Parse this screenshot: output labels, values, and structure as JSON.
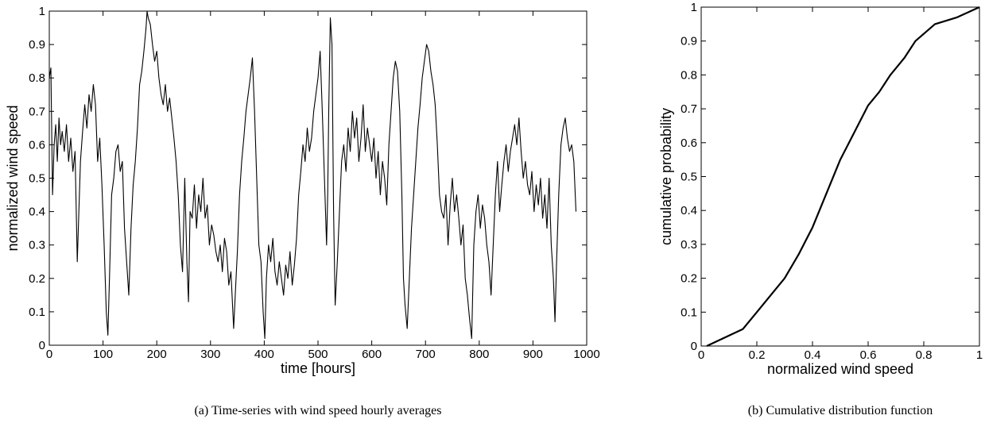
{
  "chart_data": [
    {
      "type": "line",
      "caption": "(a)  Time-series with wind speed hourly averages",
      "xlabel": "time [hours]",
      "ylabel": "normalized wind speed",
      "xlim": [
        0,
        1000
      ],
      "ylim": [
        0,
        1
      ],
      "xticks": [
        "0",
        "100",
        "200",
        "300",
        "400",
        "500",
        "600",
        "700",
        "800",
        "900",
        "1000"
      ],
      "yticks": [
        "0",
        "0.1",
        "0.2",
        "0.3",
        "0.4",
        "0.5",
        "0.6",
        "0.7",
        "0.8",
        "0.9",
        "1"
      ],
      "grid": false,
      "series": [
        {
          "x": [
            0,
            3,
            6,
            9,
            12,
            15,
            18,
            21,
            24,
            28,
            32,
            36,
            40,
            44,
            48,
            52,
            55,
            58,
            62,
            66,
            70,
            74,
            78,
            82,
            86,
            90,
            94,
            98,
            102,
            106,
            109,
            112,
            116,
            120,
            124,
            128,
            132,
            136,
            140,
            144,
            148,
            152,
            156,
            160,
            164,
            168,
            172,
            176,
            180,
            182,
            184,
            188,
            192,
            196,
            200,
            204,
            208,
            212,
            216,
            220,
            224,
            228,
            232,
            236,
            240,
            244,
            248,
            252,
            256,
            259,
            262,
            266,
            270,
            274,
            278,
            282,
            286,
            290,
            294,
            298,
            302,
            306,
            310,
            314,
            318,
            322,
            326,
            330,
            334,
            338,
            343,
            346,
            350,
            354,
            358,
            362,
            366,
            370,
            374,
            378,
            382,
            386,
            390,
            394,
            398,
            401,
            404,
            408,
            412,
            416,
            420,
            424,
            428,
            432,
            436,
            440,
            444,
            448,
            452,
            456,
            460,
            464,
            468,
            472,
            476,
            480,
            484,
            488,
            492,
            496,
            500,
            504,
            508,
            512,
            516,
            518,
            520,
            523,
            526,
            529,
            532,
            536,
            540,
            544,
            548,
            552,
            556,
            560,
            564,
            568,
            572,
            576,
            580,
            584,
            588,
            592,
            596,
            600,
            604,
            608,
            612,
            616,
            620,
            624,
            628,
            632,
            636,
            640,
            644,
            648,
            652,
            656,
            659,
            662,
            666,
            670,
            674,
            678,
            682,
            686,
            690,
            694,
            698,
            702,
            706,
            710,
            714,
            718,
            722,
            726,
            730,
            734,
            738,
            742,
            746,
            750,
            754,
            758,
            762,
            766,
            770,
            774,
            778,
            782,
            786,
            790,
            794,
            798,
            802,
            806,
            810,
            814,
            818,
            822,
            826,
            830,
            834,
            838,
            842,
            846,
            850,
            854,
            858,
            862,
            866,
            870,
            874,
            878,
            882,
            886,
            890,
            894,
            898,
            902,
            906,
            910,
            914,
            918,
            922,
            926,
            930,
            934,
            938,
            941,
            944,
            948,
            952,
            956,
            960,
            964,
            968,
            972,
            976,
            980
          ],
          "y": [
            0.8,
            0.83,
            0.45,
            0.6,
            0.66,
            0.55,
            0.68,
            0.6,
            0.64,
            0.58,
            0.66,
            0.55,
            0.62,
            0.52,
            0.58,
            0.25,
            0.4,
            0.55,
            0.64,
            0.72,
            0.65,
            0.75,
            0.7,
            0.78,
            0.72,
            0.55,
            0.62,
            0.48,
            0.3,
            0.1,
            0.03,
            0.2,
            0.45,
            0.5,
            0.58,
            0.6,
            0.52,
            0.55,
            0.35,
            0.25,
            0.15,
            0.35,
            0.48,
            0.55,
            0.65,
            0.78,
            0.82,
            0.88,
            0.95,
            1.0,
            0.98,
            0.96,
            0.9,
            0.85,
            0.88,
            0.8,
            0.75,
            0.72,
            0.78,
            0.7,
            0.74,
            0.68,
            0.62,
            0.55,
            0.45,
            0.3,
            0.22,
            0.5,
            0.25,
            0.13,
            0.4,
            0.38,
            0.48,
            0.35,
            0.45,
            0.4,
            0.5,
            0.38,
            0.42,
            0.3,
            0.36,
            0.33,
            0.28,
            0.25,
            0.3,
            0.22,
            0.32,
            0.28,
            0.18,
            0.22,
            0.05,
            0.15,
            0.28,
            0.45,
            0.55,
            0.62,
            0.7,
            0.75,
            0.8,
            0.86,
            0.7,
            0.5,
            0.3,
            0.25,
            0.1,
            0.02,
            0.2,
            0.3,
            0.25,
            0.32,
            0.22,
            0.18,
            0.25,
            0.2,
            0.15,
            0.24,
            0.2,
            0.28,
            0.18,
            0.24,
            0.32,
            0.45,
            0.52,
            0.6,
            0.55,
            0.65,
            0.58,
            0.62,
            0.7,
            0.75,
            0.8,
            0.88,
            0.7,
            0.5,
            0.3,
            0.45,
            0.7,
            0.98,
            0.9,
            0.4,
            0.12,
            0.25,
            0.4,
            0.55,
            0.6,
            0.52,
            0.65,
            0.58,
            0.7,
            0.62,
            0.68,
            0.55,
            0.62,
            0.72,
            0.58,
            0.65,
            0.6,
            0.55,
            0.62,
            0.5,
            0.58,
            0.45,
            0.55,
            0.5,
            0.42,
            0.6,
            0.7,
            0.8,
            0.85,
            0.82,
            0.7,
            0.45,
            0.2,
            0.12,
            0.05,
            0.2,
            0.35,
            0.45,
            0.55,
            0.65,
            0.72,
            0.8,
            0.85,
            0.9,
            0.88,
            0.82,
            0.78,
            0.72,
            0.6,
            0.45,
            0.4,
            0.38,
            0.45,
            0.3,
            0.42,
            0.5,
            0.4,
            0.45,
            0.38,
            0.3,
            0.36,
            0.2,
            0.15,
            0.08,
            0.02,
            0.3,
            0.4,
            0.45,
            0.35,
            0.42,
            0.38,
            0.3,
            0.25,
            0.15,
            0.3,
            0.45,
            0.55,
            0.4,
            0.48,
            0.55,
            0.6,
            0.52,
            0.58,
            0.62,
            0.66,
            0.6,
            0.68,
            0.58,
            0.5,
            0.55,
            0.48,
            0.45,
            0.52,
            0.4,
            0.48,
            0.42,
            0.5,
            0.38,
            0.45,
            0.35,
            0.5,
            0.3,
            0.2,
            0.07,
            0.25,
            0.45,
            0.6,
            0.65,
            0.68,
            0.62,
            0.58,
            0.6,
            0.55,
            0.4
          ]
        }
      ]
    },
    {
      "type": "line",
      "caption": "(b)  Cumulative distribution function",
      "xlabel": "normalized wind speed",
      "ylabel": "cumulative probability",
      "xlim": [
        0,
        1
      ],
      "ylim": [
        0,
        1
      ],
      "xticks": [
        "0",
        "0.2",
        "0.4",
        "0.6",
        "0.8",
        "1"
      ],
      "yticks": [
        "0",
        "0.1",
        "0.2",
        "0.3",
        "0.4",
        "0.5",
        "0.6",
        "0.7",
        "0.8",
        "0.9",
        "1"
      ],
      "grid": false,
      "series": [
        {
          "x": [
            0.02,
            0.15,
            0.2,
            0.25,
            0.3,
            0.35,
            0.4,
            0.45,
            0.5,
            0.55,
            0.6,
            0.64,
            0.68,
            0.73,
            0.77,
            0.84,
            0.92,
            1.0
          ],
          "y": [
            0.0,
            0.05,
            0.1,
            0.15,
            0.2,
            0.27,
            0.35,
            0.45,
            0.55,
            0.63,
            0.71,
            0.75,
            0.8,
            0.85,
            0.9,
            0.95,
            0.97,
            1.0
          ]
        }
      ]
    }
  ]
}
